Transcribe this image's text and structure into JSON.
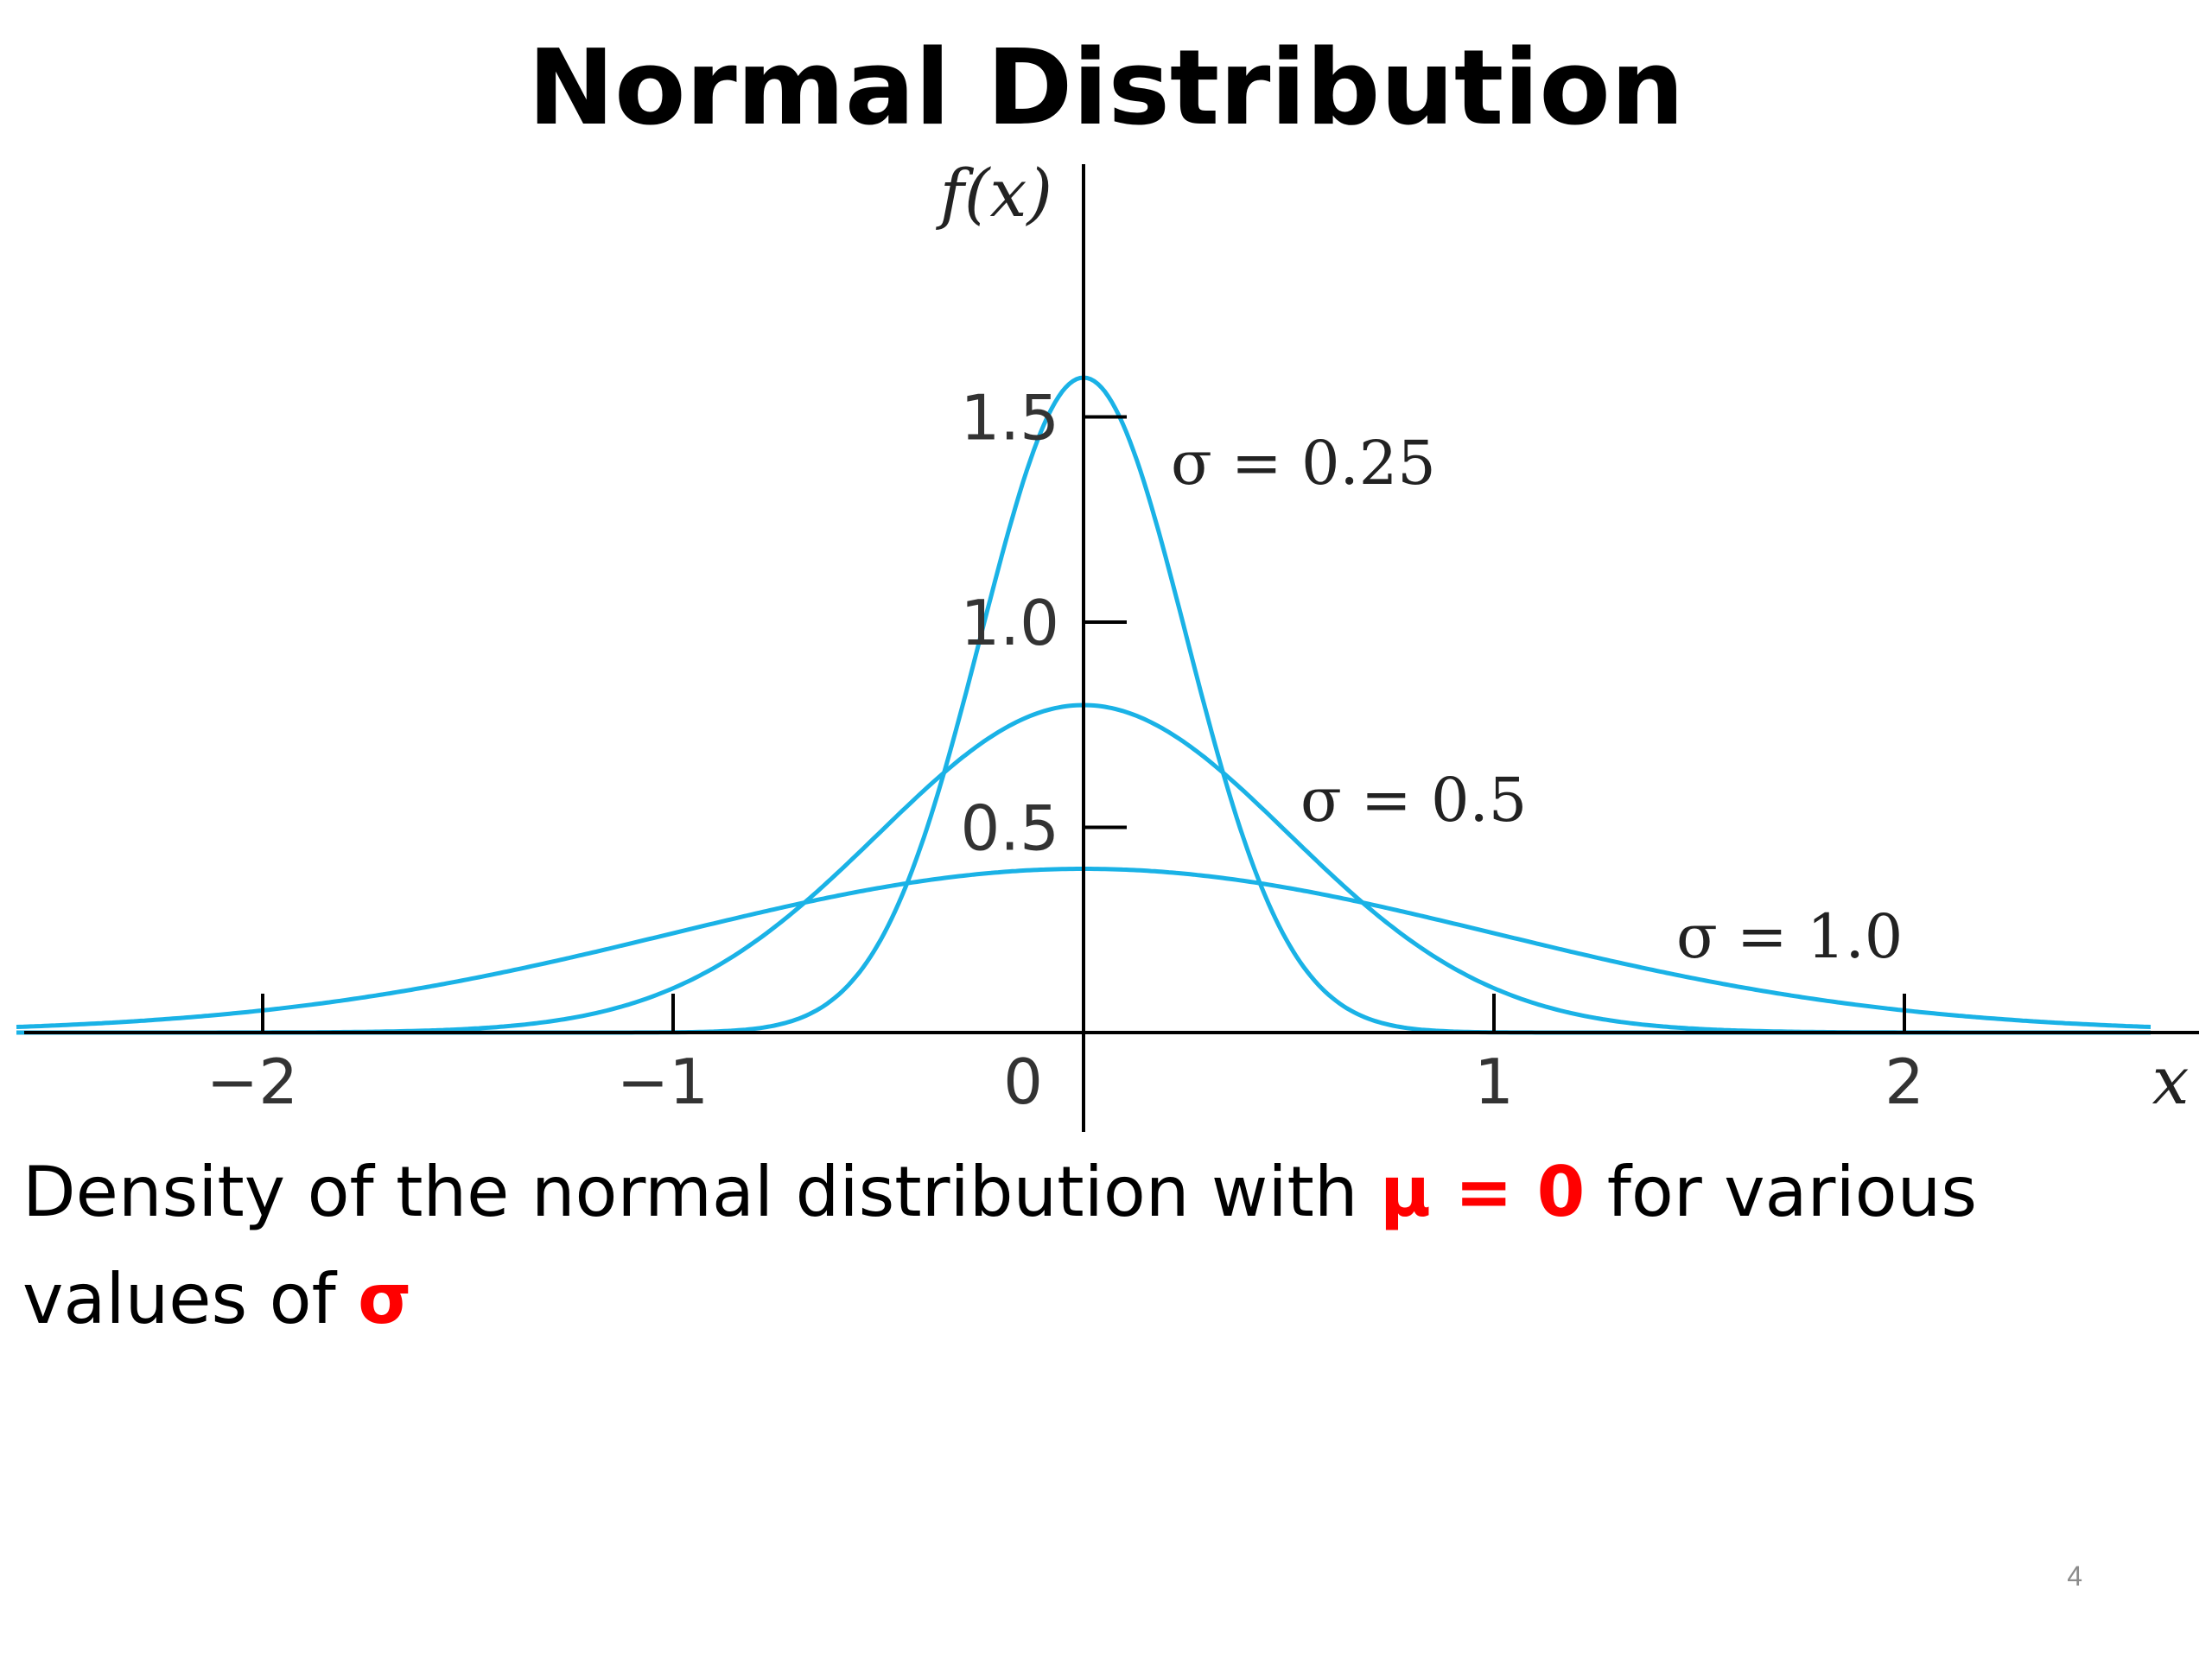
{
  "slide": {
    "title": "Normal Distribution",
    "caption": {
      "part1": "Density of the normal distribution with ",
      "mu_text": "μ = 0",
      "part2": " for various values of ",
      "sigma_text": "σ"
    },
    "page_number": "4"
  },
  "colors": {
    "curve": "#1ab2e6",
    "axis": "#000000",
    "tick_label": "#333333",
    "highlight": "#ff0000"
  },
  "chart_data": {
    "type": "line",
    "title": "",
    "xlabel": "x",
    "ylabel": "f(x)",
    "mu": 0,
    "xlim": [
      -2.6,
      2.6
    ],
    "ylim": [
      0,
      1.6
    ],
    "x_ticks": [
      -2,
      -1,
      0,
      1,
      2
    ],
    "x_tick_labels": [
      "−2",
      "−1",
      "0",
      "1",
      "2"
    ],
    "y_ticks": [
      0.5,
      1.0,
      1.5
    ],
    "y_tick_labels": [
      "0.5",
      "1.0",
      "1.5"
    ],
    "grid": false,
    "legend": "none",
    "series": [
      {
        "name": "σ = 0.25",
        "sigma": 0.25,
        "peak": 1.596
      },
      {
        "name": "σ = 0.5",
        "sigma": 0.5,
        "peak": 0.798
      },
      {
        "name": "σ = 1.0",
        "sigma": 1.0,
        "peak": 0.399
      }
    ]
  }
}
